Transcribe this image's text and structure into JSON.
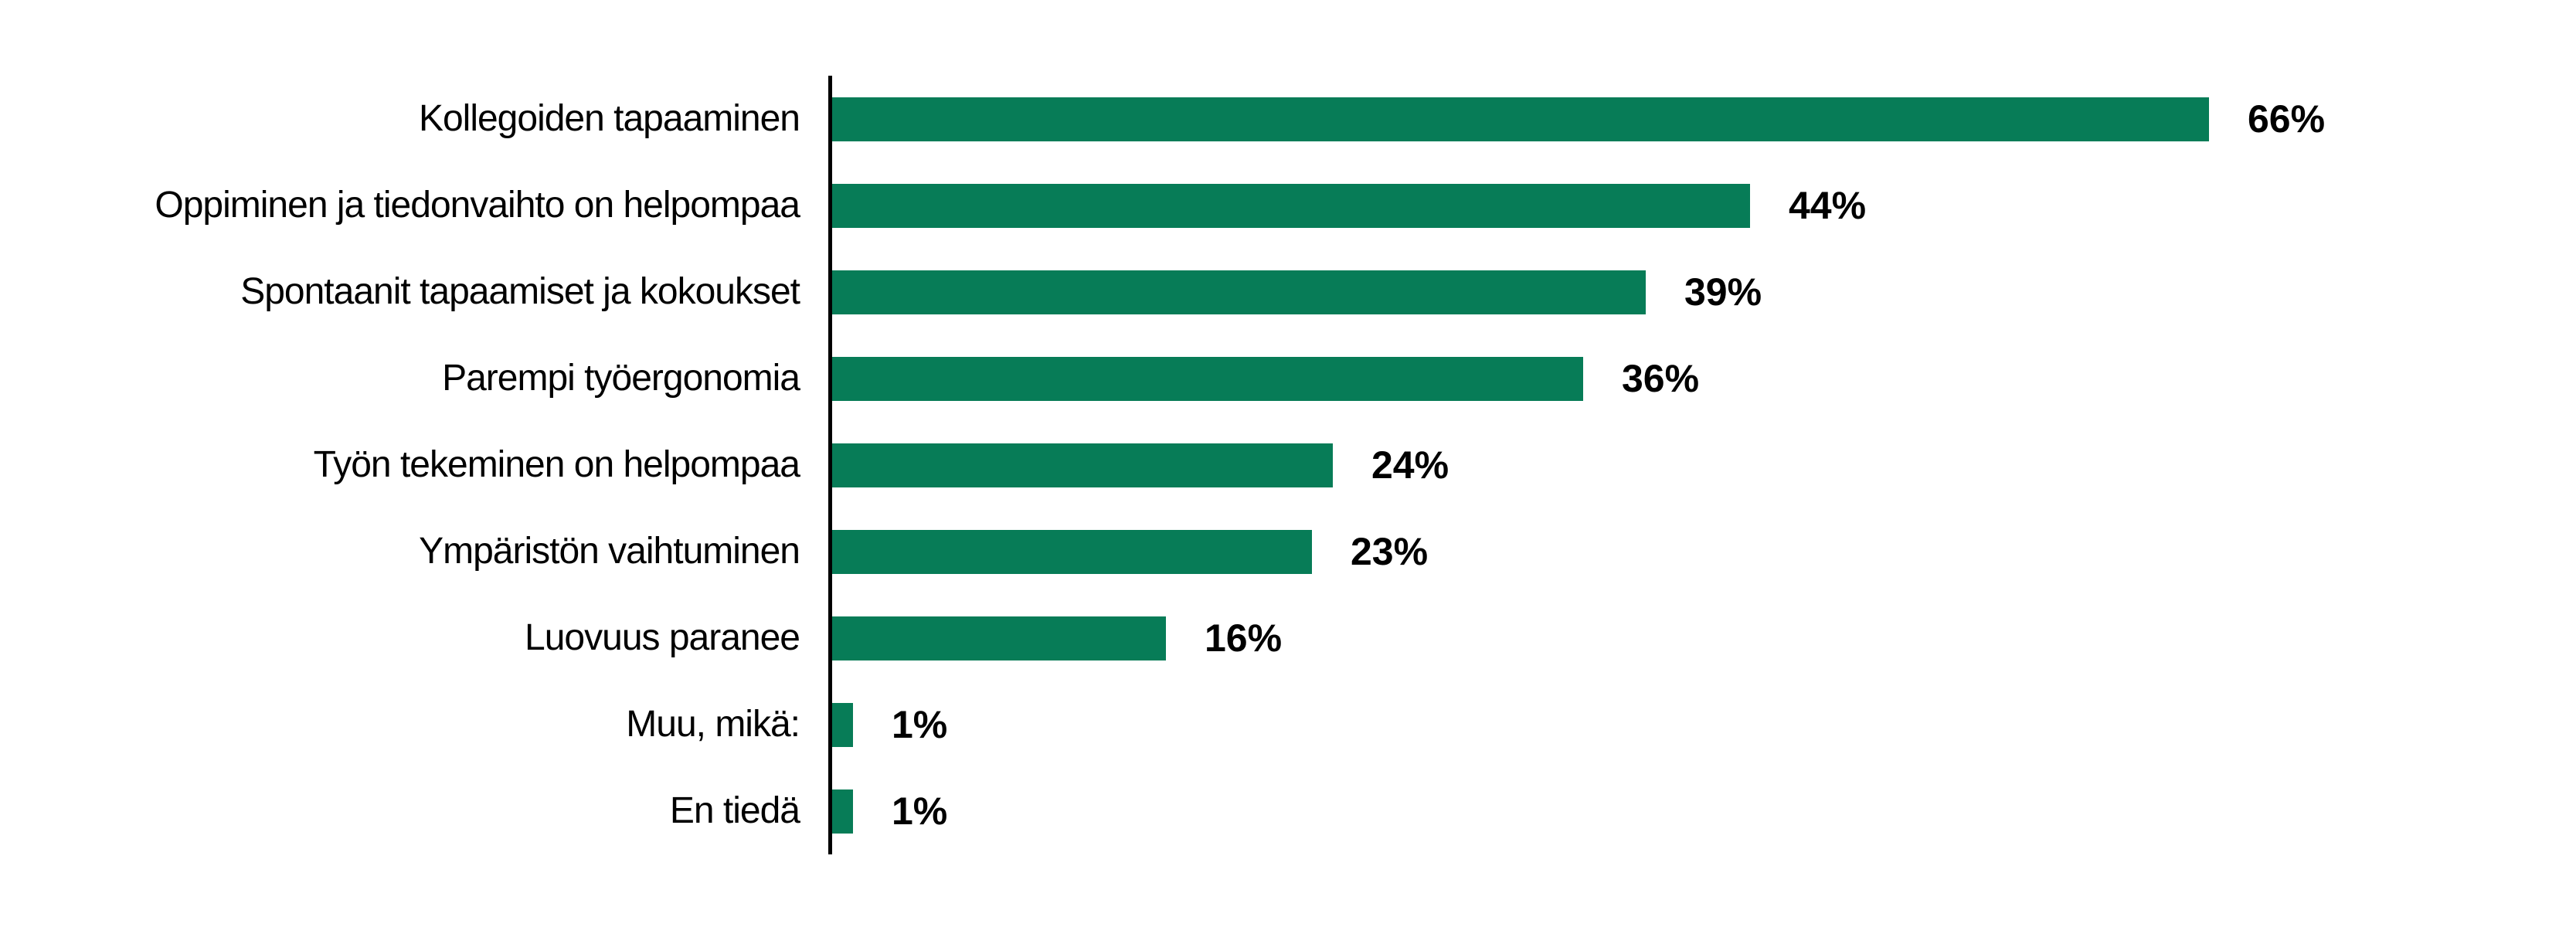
{
  "chart_data": {
    "type": "bar",
    "orientation": "horizontal",
    "title": "",
    "xlabel": "",
    "ylabel": "",
    "categories": [
      "Kollegoiden tapaaminen",
      "Oppiminen ja tiedonvaihto on helpompaa",
      "Spontaanit tapaamiset ja kokoukset",
      "Parempi työergonomia",
      "Työn tekeminen on helpompaa",
      "Ympäristön vaihtuminen",
      "Luovuus paranee",
      "Muu, mikä:",
      "En tiedä"
    ],
    "values": [
      66,
      44,
      39,
      36,
      24,
      23,
      16,
      1,
      1
    ],
    "value_labels": [
      "66%",
      "44%",
      "39%",
      "36%",
      "24%",
      "23%",
      "16%",
      "1%",
      "1%"
    ],
    "value_label_position": "outside-end",
    "grid": false,
    "legend": null,
    "value_axis_visible": false,
    "category_axis_line_visible": true,
    "bar_color": "#077C57",
    "axis_line_color": "#000000",
    "background_color": "#FFFFFF",
    "text_color": "#000000"
  }
}
